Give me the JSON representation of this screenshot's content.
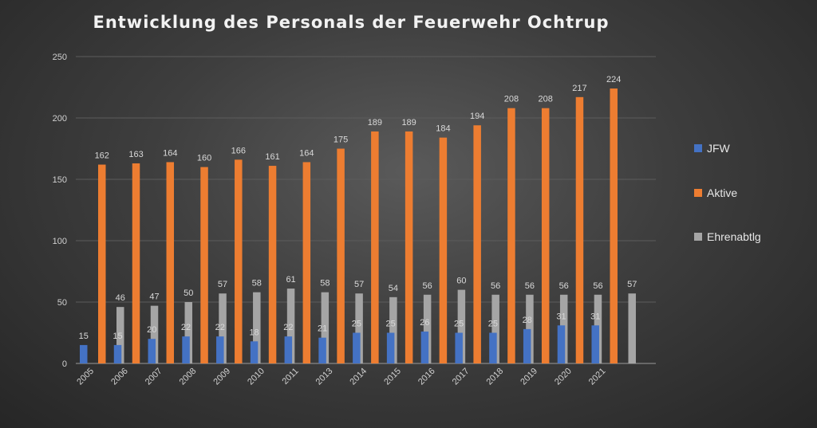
{
  "chart_data": {
    "type": "bar",
    "title": "Entwicklung des Personals der Feuerwehr Ochtrup",
    "categories": [
      "2005",
      "2006",
      "2007",
      "2008",
      "2009",
      "2010",
      "2011",
      "2013",
      "2014",
      "2015",
      "2016",
      "2017",
      "2018",
      "2019",
      "2020",
      "2021"
    ],
    "series": [
      {
        "name": "JFW",
        "color": "#4472c4",
        "values": [
          15,
          15,
          20,
          22,
          22,
          18,
          22,
          21,
          25,
          25,
          26,
          25,
          25,
          28,
          31,
          31
        ]
      },
      {
        "name": "Aktive",
        "color": "#ed7d31",
        "values": [
          162,
          163,
          164,
          160,
          166,
          161,
          164,
          175,
          189,
          189,
          184,
          194,
          208,
          208,
          217,
          224
        ]
      },
      {
        "name": "Ehrenabtlg",
        "color": "#a5a5a5",
        "values": [
          46,
          47,
          50,
          57,
          58,
          61,
          58,
          57,
          54,
          56,
          60,
          56,
          56,
          56,
          56,
          57
        ]
      }
    ],
    "ylim": [
      0,
      250
    ],
    "yticks": [
      0,
      50,
      100,
      150,
      200,
      250
    ],
    "grid": true,
    "legend": "right",
    "data_labels": true
  }
}
